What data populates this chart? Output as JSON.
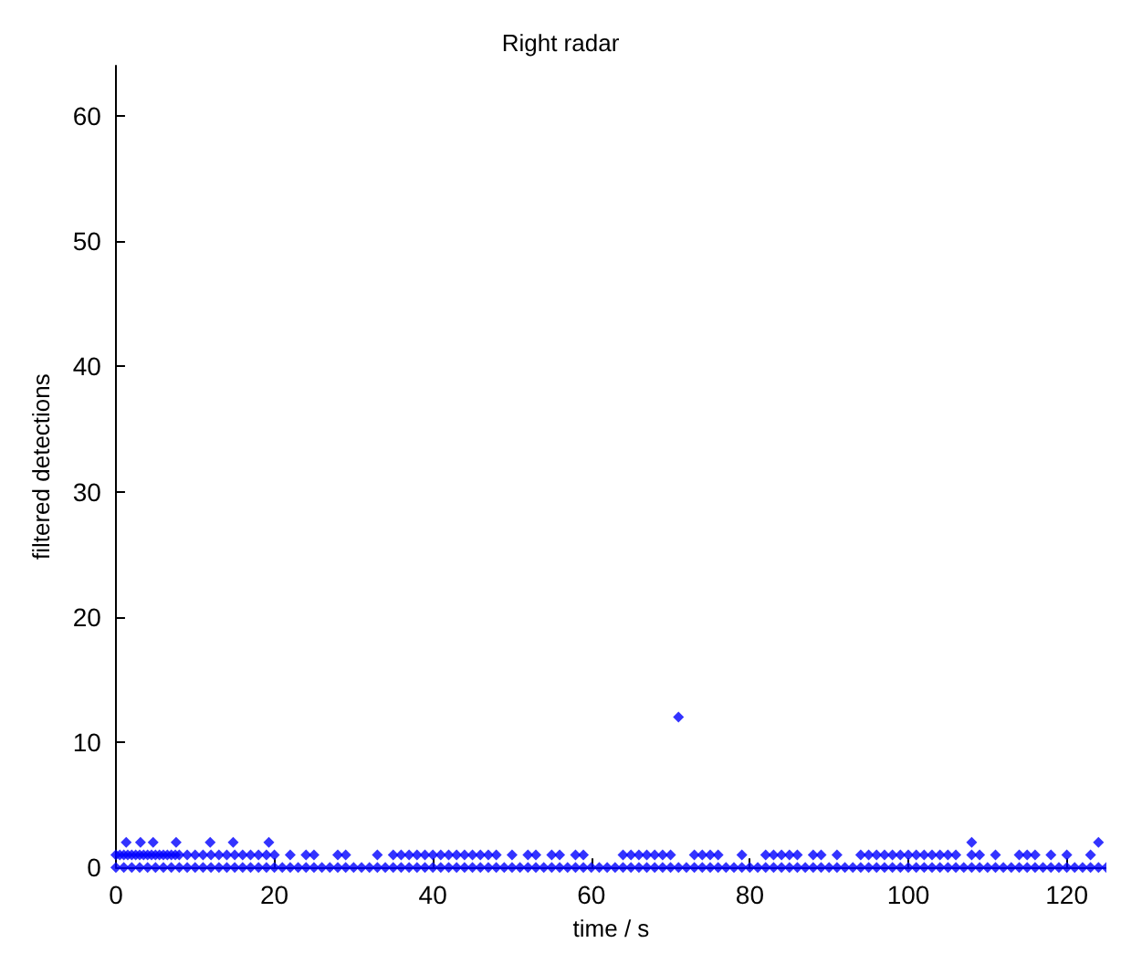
{
  "chart_data": {
    "type": "scatter",
    "title": "Right radar",
    "xlabel": "time / s",
    "ylabel": "filtered detections",
    "color": "#0000ff",
    "marker": "diamond",
    "grid": false,
    "xlim": [
      0,
      125
    ],
    "ylim": [
      0,
      64
    ],
    "xticks": [
      0,
      20,
      40,
      60,
      80,
      100,
      120
    ],
    "yticks": [
      0,
      10,
      20,
      30,
      40,
      50,
      60
    ],
    "x": [
      0,
      1,
      2,
      3,
      4,
      5,
      6,
      7,
      8,
      9,
      10,
      11,
      12,
      13,
      14,
      15,
      16,
      17,
      18,
      19,
      20,
      21,
      22,
      23,
      24,
      25,
      26,
      27,
      28,
      29,
      30,
      31,
      32,
      33,
      34,
      35,
      36,
      37,
      38,
      39,
      40,
      41,
      42,
      43,
      44,
      45,
      46,
      47,
      48,
      49,
      50,
      51,
      52,
      53,
      54,
      55,
      56,
      57,
      58,
      59,
      60,
      61,
      62,
      63,
      64,
      65,
      66,
      67,
      68,
      69,
      70,
      71,
      72,
      73,
      74,
      75,
      76,
      77,
      78,
      79,
      80,
      81,
      82,
      83,
      84,
      85,
      86,
      87,
      88,
      89,
      90,
      91,
      92,
      93,
      94,
      95,
      96,
      97,
      98,
      99,
      100,
      101,
      102,
      103,
      104,
      105,
      106,
      107,
      108,
      109,
      110,
      111,
      112,
      113,
      114,
      115,
      116,
      117,
      118,
      119,
      120,
      121,
      122,
      123,
      124,
      125,
      0,
      0.5,
      1,
      1.5,
      2,
      2.5,
      3,
      3.5,
      4,
      4.5,
      5,
      5.5,
      6,
      6.5,
      7,
      7.5,
      8,
      9,
      10,
      11,
      12,
      13,
      14,
      15,
      16,
      17,
      18,
      19,
      20,
      22,
      24,
      25,
      28,
      29,
      33,
      35,
      36,
      37,
      38,
      39,
      40,
      41,
      42,
      43,
      44,
      45,
      46,
      47,
      48,
      50,
      52,
      53,
      55,
      56,
      58,
      59,
      64,
      65,
      66,
      67,
      68,
      69,
      70,
      73,
      74,
      75,
      76,
      79,
      82,
      83,
      84,
      85,
      86,
      88,
      89,
      91,
      94,
      95,
      96,
      97,
      98,
      99,
      100,
      101,
      102,
      103,
      104,
      105,
      106,
      108,
      109,
      111,
      114,
      115,
      116,
      118,
      120,
      123,
      1.3,
      3.1,
      4.7,
      7.6,
      11.9,
      14.8,
      19.3,
      108,
      124,
      71
    ],
    "values": [
      0,
      0,
      0,
      0,
      0,
      0,
      0,
      0,
      0,
      0,
      0,
      0,
      0,
      0,
      0,
      0,
      0,
      0,
      0,
      0,
      0,
      0,
      0,
      0,
      0,
      0,
      0,
      0,
      0,
      0,
      0,
      0,
      0,
      0,
      0,
      0,
      0,
      0,
      0,
      0,
      0,
      0,
      0,
      0,
      0,
      0,
      0,
      0,
      0,
      0,
      0,
      0,
      0,
      0,
      0,
      0,
      0,
      0,
      0,
      0,
      0,
      0,
      0,
      0,
      0,
      0,
      0,
      0,
      0,
      0,
      0,
      0,
      0,
      0,
      0,
      0,
      0,
      0,
      0,
      0,
      0,
      0,
      0,
      0,
      0,
      0,
      0,
      0,
      0,
      0,
      0,
      0,
      0,
      0,
      0,
      0,
      0,
      0,
      0,
      0,
      0,
      0,
      0,
      0,
      0,
      0,
      0,
      0,
      0,
      0,
      0,
      0,
      0,
      0,
      0,
      0,
      0,
      0,
      0,
      0,
      0,
      0,
      0,
      0,
      0,
      0,
      1,
      1,
      1,
      1,
      1,
      1,
      1,
      1,
      1,
      1,
      1,
      1,
      1,
      1,
      1,
      1,
      1,
      1,
      1,
      1,
      1,
      1,
      1,
      1,
      1,
      1,
      1,
      1,
      1,
      1,
      1,
      1,
      1,
      1,
      1,
      1,
      1,
      1,
      1,
      1,
      1,
      1,
      1,
      1,
      1,
      1,
      1,
      1,
      1,
      1,
      1,
      1,
      1,
      1,
      1,
      1,
      1,
      1,
      1,
      1,
      1,
      1,
      1,
      1,
      1,
      1,
      1,
      1,
      1,
      1,
      1,
      1,
      1,
      1,
      1,
      1,
      1,
      1,
      1,
      1,
      1,
      1,
      1,
      1,
      1,
      1,
      1,
      1,
      1,
      1,
      1,
      1,
      1,
      1,
      1,
      1,
      1,
      1,
      2,
      2,
      2,
      2,
      2,
      2,
      2,
      2,
      2,
      12
    ]
  }
}
